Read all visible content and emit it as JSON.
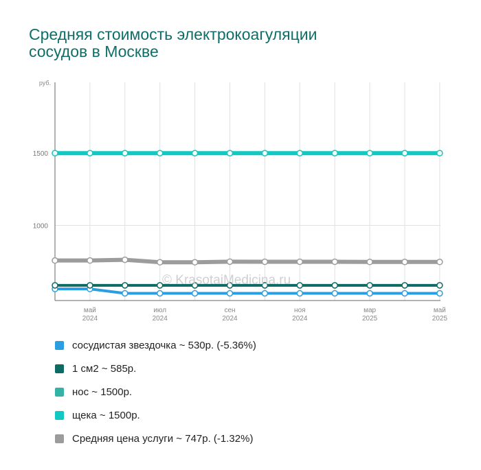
{
  "title_lines": [
    "Средняя стоимость электрокоагуляции",
    "сосудов в Москве"
  ],
  "watermark": "© KrasotaiMedicina.ru",
  "chart_data": {
    "type": "line",
    "ylabel": "руб.",
    "ylim": [
      480,
      1990
    ],
    "y_ticks": [
      {
        "value": 1500,
        "label": "1500"
      },
      {
        "value": 1000,
        "label": "1000"
      }
    ],
    "x_ticks": [
      {
        "index": 1,
        "month": "май",
        "year": "2024"
      },
      {
        "index": 3,
        "month": "июл",
        "year": "2024"
      },
      {
        "index": 5,
        "month": "сен",
        "year": "2024"
      },
      {
        "index": 7,
        "month": "ноя",
        "year": "2024"
      },
      {
        "index": 9,
        "month": "мар",
        "year": "2025"
      },
      {
        "index": 11,
        "month": "май",
        "year": "2025"
      }
    ],
    "grid": true,
    "legend_position": "bottom",
    "series": [
      {
        "name": "сосудистая звездочка ~ 530р. (-5.36%)",
        "color": "#2a9ee0",
        "line_width": 4,
        "values": [
          560,
          560,
          530,
          530,
          530,
          530,
          530,
          530,
          530,
          530,
          530,
          530
        ]
      },
      {
        "name": "1 см2 ~ 585р.",
        "color": "#0d6b63",
        "line_width": 4,
        "values": [
          585,
          585,
          585,
          585,
          585,
          585,
          585,
          585,
          585,
          585,
          585,
          585
        ]
      },
      {
        "name": "нос ~ 1500р.",
        "color": "#35b2a6",
        "line_width": 0,
        "values": [
          1500,
          1500,
          1500,
          1500,
          1500,
          1500,
          1500,
          1500,
          1500,
          1500,
          1500,
          1500
        ]
      },
      {
        "name": "щека ~ 1500р.",
        "color": "#12c8c2",
        "line_width": 6,
        "values": [
          1500,
          1500,
          1500,
          1500,
          1500,
          1500,
          1500,
          1500,
          1500,
          1500,
          1500,
          1500
        ]
      },
      {
        "name": "Средняя цена услуги ~ 747р. (-1.32%)",
        "color": "#9c9c9c",
        "line_width": 6,
        "values": [
          757,
          757,
          762,
          745,
          745,
          749,
          748,
          748,
          748,
          747,
          747,
          747
        ]
      }
    ]
  }
}
